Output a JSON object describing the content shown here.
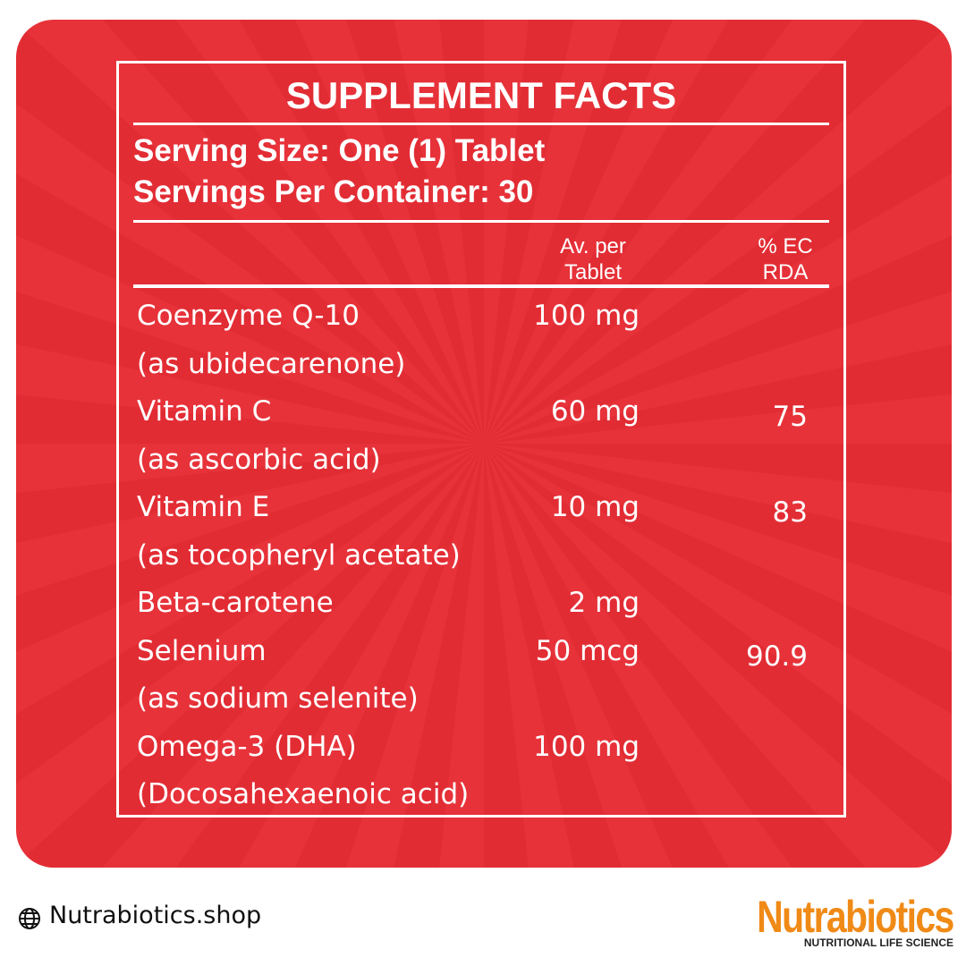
{
  "label": {
    "title": "SUPPLEMENT FACTS",
    "serving": [
      "Serving Size: One (1) Tablet",
      "Servings Per Container: 30"
    ],
    "columns": {
      "amount": [
        "Av. per",
        "Tablet"
      ],
      "rda": [
        "% EC",
        "RDA"
      ]
    },
    "rows": [
      {
        "name": "Coenzyme Q-10",
        "detail": "(as ubidecarenone)",
        "amount": "100 mg"
      },
      {
        "name": "Vitamin C",
        "detail": "(as ascorbic acid)",
        "amount": "60 mg",
        "rda": "75"
      },
      {
        "name": "Vitamin E",
        "detail": "(as tocopheryl acetate)",
        "amount": "10 mg",
        "rda": "83"
      },
      {
        "name": "Beta-carotene",
        "amount": "2 mg"
      },
      {
        "name": "Selenium",
        "detail": "(as sodium selenite)",
        "amount": "50 mcg",
        "rda": "90.9"
      },
      {
        "name": "Omega-3 (DHA)",
        "detail": "(Docosahexaenoic acid)",
        "amount": "100 mg"
      }
    ]
  },
  "footer": {
    "website": "Nutrabiotics.shop",
    "brand": "Nutrabiotics",
    "tagline": "NUTRITIONAL LIFE SCIENCE"
  }
}
